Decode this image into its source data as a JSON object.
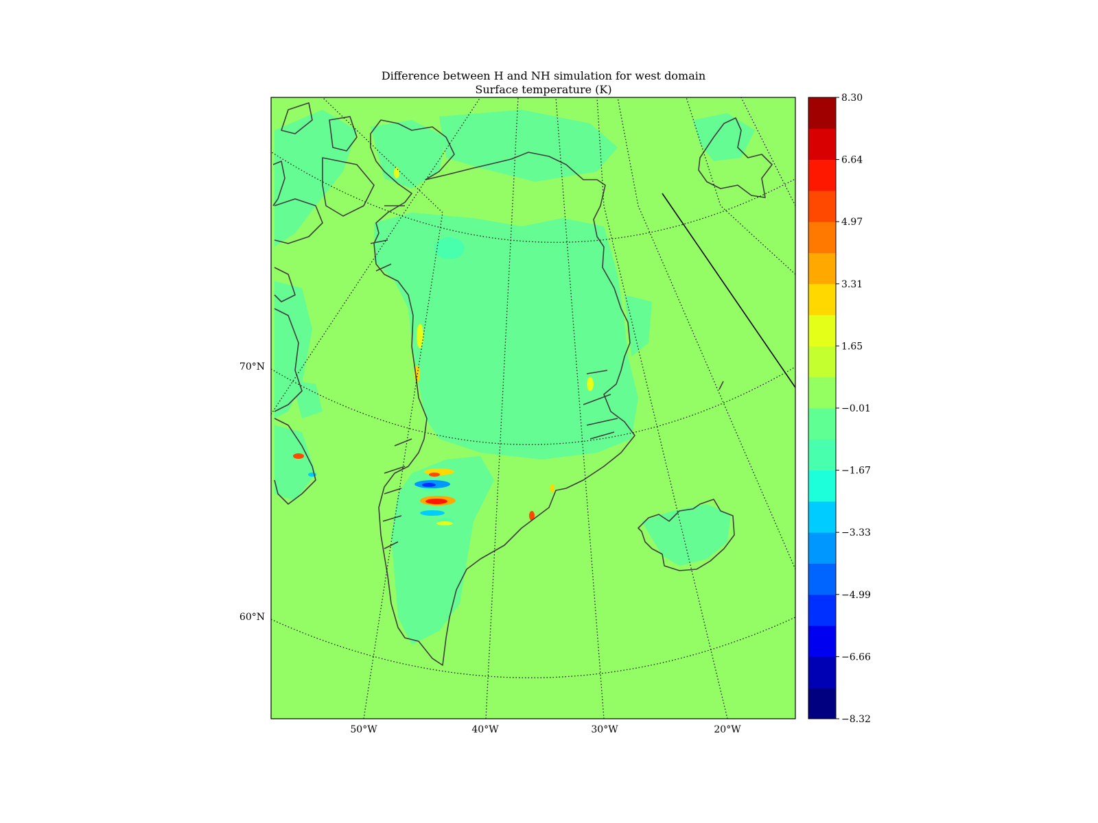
{
  "title": {
    "line1": "Difference between H and NH simulation for west domain",
    "line2": "Surface temperature (K)"
  },
  "map": {
    "projection": "polar stereographic",
    "background_value_color": "#94fc64",
    "coastline_color": "#3c3c3c",
    "graticule_style": "dotted",
    "lat_labels": [
      "70°N",
      "60°N"
    ],
    "lon_labels": [
      "50°W",
      "40°W",
      "30°W",
      "20°W"
    ],
    "regions": [
      "Greenland",
      "Iceland",
      "Svalbard",
      "Canadian Arctic Archipelago"
    ]
  },
  "colorbar": {
    "min": -8.32,
    "max": 8.3,
    "tick_labels": [
      "8.30",
      "6.64",
      "4.97",
      "3.31",
      "1.65",
      "−0.01",
      "−1.67",
      "−3.33",
      "−4.99",
      "−6.66",
      "−8.32"
    ],
    "colors": [
      "#000080",
      "#0000b4",
      "#0000f0",
      "#0030ff",
      "#0064ff",
      "#0098ff",
      "#00ccff",
      "#1cffda",
      "#48ffae",
      "#60ff94",
      "#94ff60",
      "#c4ff30",
      "#e4ff18",
      "#ffd800",
      "#ffa800",
      "#ff7800",
      "#ff4800",
      "#ff1800",
      "#d80000",
      "#a00000"
    ]
  }
}
